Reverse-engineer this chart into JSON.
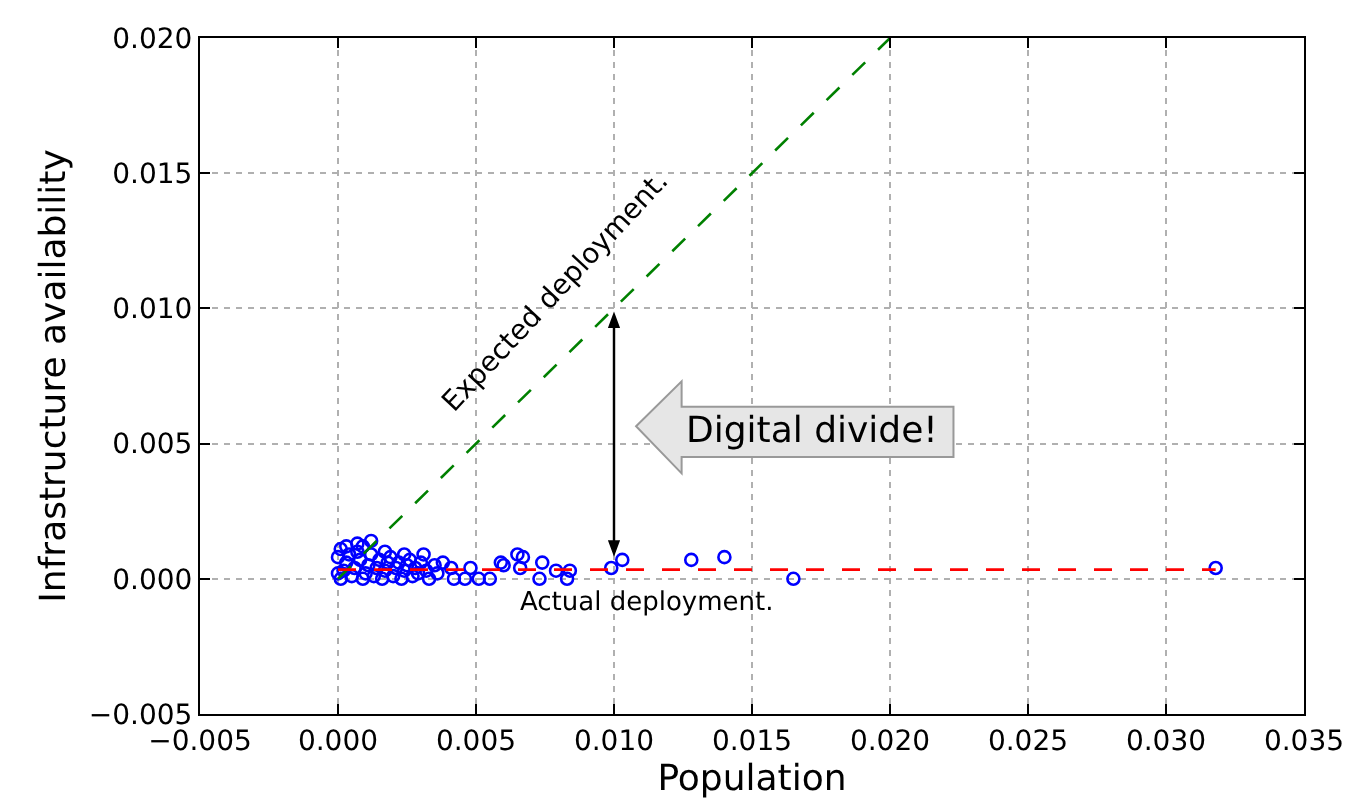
{
  "chart_data": {
    "type": "scatter",
    "xlabel": "Population",
    "ylabel": "Infrastructure availability",
    "xlim": [
      -0.005,
      0.035
    ],
    "ylim": [
      -0.005,
      0.02
    ],
    "xticks": [
      {
        "value": -0.005,
        "label": "−0.005"
      },
      {
        "value": 0,
        "label": "0.000"
      },
      {
        "value": 0.005,
        "label": "0.005"
      },
      {
        "value": 0.01,
        "label": "0.010"
      },
      {
        "value": 0.015,
        "label": "0.015"
      },
      {
        "value": 0.02,
        "label": "0.020"
      },
      {
        "value": 0.025,
        "label": "0.025"
      },
      {
        "value": 0.03,
        "label": "0.030"
      },
      {
        "value": 0.035,
        "label": "0.035"
      }
    ],
    "yticks": [
      {
        "value": -0.005,
        "label": "−0.005"
      },
      {
        "value": 0,
        "label": "0.000"
      },
      {
        "value": 0.005,
        "label": "0.005"
      },
      {
        "value": 0.01,
        "label": "0.010"
      },
      {
        "value": 0.015,
        "label": "0.015"
      },
      {
        "value": 0.02,
        "label": "0.020"
      }
    ],
    "grid": true,
    "series": [
      {
        "color": "#0000ff",
        "marker": "circle",
        "x": [
          0.0001,
          0.0002,
          0.0003,
          0.0004,
          0.0005,
          0.0006,
          0.0008,
          0.0009,
          0.001,
          0.0011,
          0.0012,
          0.0013,
          0.0014,
          0.0015,
          0.0016,
          0.0017,
          0.0018,
          0.0019,
          0.002,
          0.0021,
          0.0022,
          0.0023,
          0.0024,
          0.0025,
          0.0026,
          0.0027,
          0.0028,
          0.0029,
          0.003,
          0.0032,
          0.0033,
          0.0035,
          0.0036,
          0.0,
          0.0,
          0.0001,
          0.0007,
          0.0009,
          0.0065,
          0.0067,
          0.0059,
          0.006,
          0.0066,
          0.0074,
          0.0073,
          0.0079,
          0.0084,
          0.0083,
          0.0055,
          0.0051,
          0.0048,
          0.0046,
          0.0042,
          0.0041,
          0.0038,
          0.0031,
          0.0024,
          0.0017,
          0.0012,
          0.0007,
          0.0003,
          0.0103,
          0.0099,
          0.0128,
          0.014,
          0.0165,
          0.0318
        ],
        "values": [
          0.0,
          0.0003,
          0.0006,
          0.0009,
          0.0001,
          0.0004,
          0.0007,
          0.0,
          0.0002,
          0.0005,
          0.0009,
          0.0001,
          0.0004,
          0.0007,
          0.0,
          0.0003,
          0.0006,
          0.0008,
          0.0001,
          0.0004,
          0.0006,
          0.0,
          0.0003,
          0.0005,
          0.0007,
          0.0001,
          0.0004,
          0.0002,
          0.0006,
          0.0003,
          0.0,
          0.0005,
          0.0002,
          0.0008,
          0.0002,
          0.0011,
          0.001,
          0.0012,
          0.0009,
          0.0008,
          0.0006,
          0.0005,
          0.0004,
          0.0006,
          0.0,
          0.0003,
          0.0003,
          0.0,
          0.0,
          0.0,
          0.0004,
          0.0,
          0.0,
          0.0004,
          0.0006,
          0.0009,
          0.0009,
          0.001,
          0.0014,
          0.0013,
          0.0012,
          0.0007,
          0.0004,
          0.0007,
          0.0008,
          0.0,
          0.0004
        ]
      },
      {
        "type": "line",
        "color": "#008000",
        "line_style": "dashed",
        "marker": "none",
        "x": [
          0,
          0.02
        ],
        "values": [
          0,
          0.02
        ]
      },
      {
        "type": "line",
        "color": "#ff0000",
        "line_style": "dashed",
        "marker": "none",
        "x": [
          0,
          0.0318
        ],
        "values": [
          0.00034,
          0.00034
        ]
      }
    ],
    "annotations": [
      "Expected deployment.",
      "Actual deployment.",
      "Digital divide!"
    ]
  }
}
